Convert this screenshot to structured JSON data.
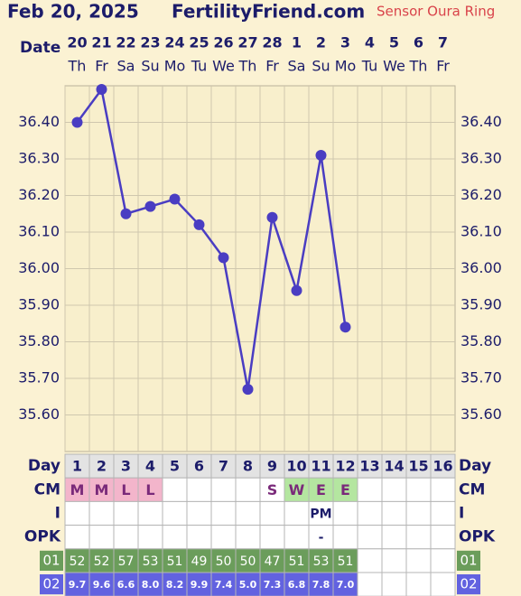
{
  "header": {
    "date": "Feb 20, 2025",
    "site": "FertilityFriend.com",
    "sensor": "Sensor Oura Ring"
  },
  "date_label": "Date",
  "weekdays": [
    "Th",
    "Fr",
    "Sa",
    "Su",
    "Mo",
    "Tu",
    "We",
    "Th",
    "Fr",
    "Sa",
    "Su",
    "Mo",
    "Tu",
    "We",
    "Th",
    "Fr"
  ],
  "chart_data": {
    "type": "line",
    "categories": [
      "20",
      "21",
      "22",
      "23",
      "24",
      "25",
      "26",
      "27",
      "28",
      "1",
      "2",
      "3",
      "4",
      "5",
      "6",
      "7"
    ],
    "values": [
      36.4,
      36.49,
      36.15,
      36.17,
      36.19,
      36.12,
      36.03,
      35.67,
      36.14,
      35.94,
      36.31,
      35.84,
      null,
      null,
      null,
      null
    ],
    "color": "#4a3dc2",
    "ylim": [
      35.5,
      36.5
    ],
    "yticks": [
      {
        "value": 35.6,
        "label": "35.60"
      },
      {
        "value": 35.7,
        "label": "35.70"
      },
      {
        "value": 35.8,
        "label": "35.80"
      },
      {
        "value": 35.9,
        "label": "35.90"
      },
      {
        "value": 36.0,
        "label": "36.00"
      },
      {
        "value": 36.1,
        "label": "36.10"
      },
      {
        "value": 36.2,
        "label": "36.20"
      },
      {
        "value": 36.3,
        "label": "36.30"
      },
      {
        "value": 36.4,
        "label": "36.40"
      }
    ],
    "grid": true
  },
  "rows": [
    {
      "label": "Day",
      "style": "day",
      "values": [
        "1",
        "2",
        "3",
        "4",
        "5",
        "6",
        "7",
        "8",
        "9",
        "10",
        "11",
        "12",
        "13",
        "14",
        "15",
        "16"
      ]
    },
    {
      "label": "CM",
      "style": "cm",
      "values": [
        "M",
        "M",
        "L",
        "L",
        null,
        null,
        null,
        null,
        "S",
        "W",
        "E",
        "E",
        null,
        null,
        null,
        null
      ]
    },
    {
      "label": "I",
      "style": "plain",
      "values": [
        null,
        null,
        null,
        null,
        null,
        null,
        null,
        null,
        null,
        null,
        "PM",
        null,
        null,
        null,
        null,
        null
      ]
    },
    {
      "label": "OPK",
      "style": "plain",
      "values": [
        null,
        null,
        null,
        null,
        null,
        null,
        null,
        null,
        null,
        null,
        "-",
        null,
        null,
        null,
        null,
        null
      ]
    },
    {
      "label": "01",
      "style": "green",
      "values": [
        "52",
        "52",
        "57",
        "53",
        "51",
        "49",
        "50",
        "50",
        "47",
        "51",
        "53",
        "51",
        null,
        null,
        null,
        null
      ]
    },
    {
      "label": "02",
      "style": "blue",
      "values": [
        "9.7",
        "9.6",
        "6.6",
        "8.0",
        "8.2",
        "9.9",
        "7.4",
        "5.0",
        "7.3",
        "6.8",
        "7.8",
        "7.0",
        null,
        null,
        null,
        null
      ]
    }
  ]
}
